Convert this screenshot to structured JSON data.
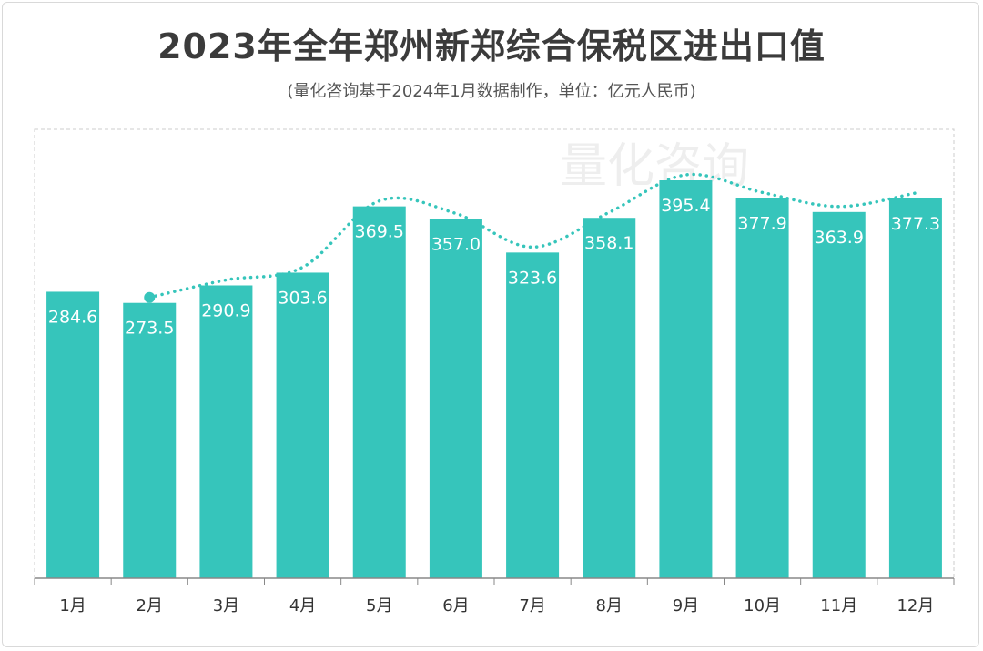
{
  "title": "2023年全年郑州新郑综合保税区进出口值",
  "subtitle": "(量化咨询基于2024年1月数据制作，单位：亿元人民币)",
  "watermark": "量化咨询",
  "colors": {
    "bar": "#36c5bb",
    "trend_line": "#36c5bb",
    "title": "#3b3b3b",
    "axis": "#888888"
  },
  "chart_data": {
    "type": "bar",
    "title": "2023年全年郑州新郑综合保税区进出口值",
    "subtitle": "(量化咨询基于2024年1月数据制作，单位：亿元人民币)",
    "categories": [
      "1月",
      "2月",
      "3月",
      "4月",
      "5月",
      "6月",
      "7月",
      "8月",
      "9月",
      "10月",
      "11月",
      "12月"
    ],
    "values": [
      284.6,
      273.5,
      290.9,
      303.6,
      369.5,
      357.0,
      323.6,
      358.1,
      395.4,
      377.9,
      363.9,
      377.3
    ],
    "value_labels": [
      "284.6",
      "273.5",
      "290.9",
      "303.6",
      "369.5",
      "357.0",
      "323.6",
      "358.1",
      "395.4",
      "377.9",
      "363.9",
      "377.3"
    ],
    "trend_line": "dotted smoothed line from 2月 to 12月",
    "trend_start_index": 1,
    "ylim": [
      0,
      420
    ],
    "grid": false,
    "legend": "none"
  }
}
